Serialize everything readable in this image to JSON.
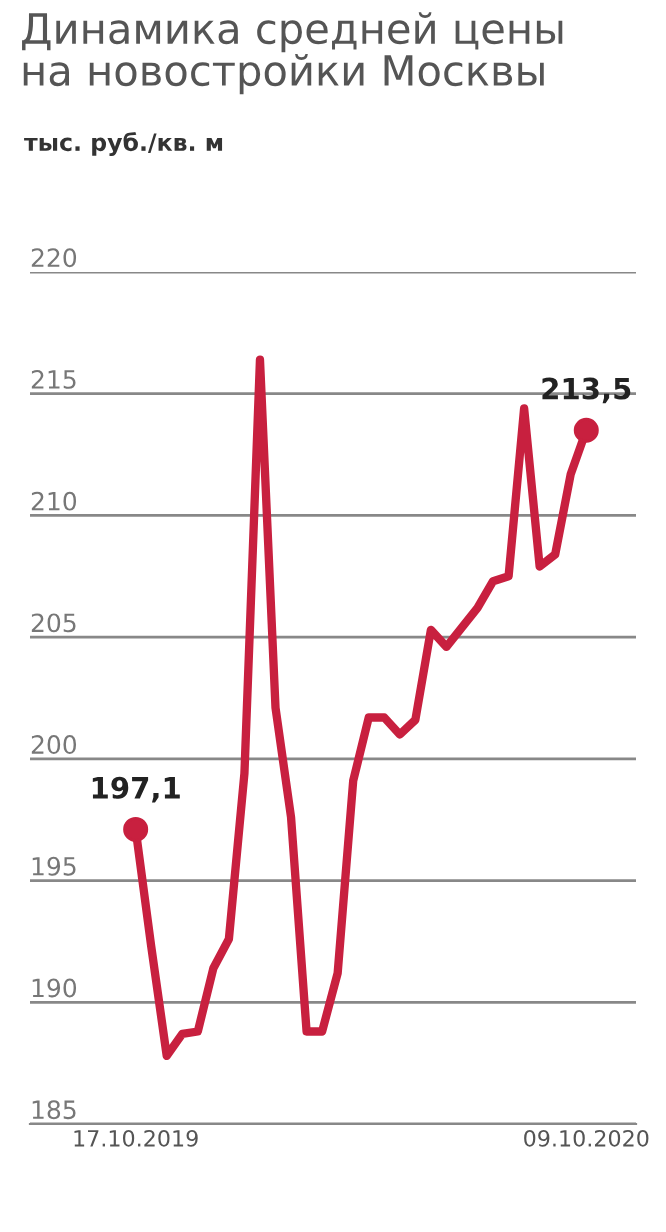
{
  "chart_data": {
    "type": "line",
    "title": "Динамика средней цены\nна новостройки Москвы",
    "subtitle": "тыс. руб./кв. м",
    "categories": [
      "17.10.2019",
      null,
      null,
      null,
      null,
      null,
      null,
      null,
      null,
      null,
      null,
      null,
      null,
      null,
      null,
      null,
      null,
      null,
      null,
      null,
      null,
      null,
      null,
      null,
      null,
      null,
      null,
      null,
      null,
      "09.10.2020"
    ],
    "series": [
      {
        "color": "#c8203f",
        "values": [
          197.1,
          192.3,
          187.8,
          188.7,
          188.8,
          191.4,
          192.6,
          199.4,
          216.4,
          202.1,
          197.6,
          188.8,
          188.8,
          191.2,
          199.1,
          201.7,
          201.7,
          201.0,
          201.6,
          205.3,
          204.6,
          205.4,
          206.2,
          207.3,
          207.5,
          214.4,
          207.9,
          208.4,
          211.7,
          213.5
        ],
        "value_labels": [
          "197,1",
          null,
          null,
          null,
          null,
          null,
          null,
          null,
          null,
          null,
          null,
          null,
          null,
          null,
          null,
          null,
          null,
          null,
          null,
          null,
          null,
          null,
          null,
          null,
          null,
          null,
          null,
          null,
          null,
          "213,5"
        ]
      }
    ],
    "ylim": [
      185,
      220
    ],
    "yticks": [
      185,
      190,
      195,
      200,
      205,
      210,
      215,
      220
    ],
    "grid": "y",
    "line_style": "solid",
    "legend": false
  }
}
